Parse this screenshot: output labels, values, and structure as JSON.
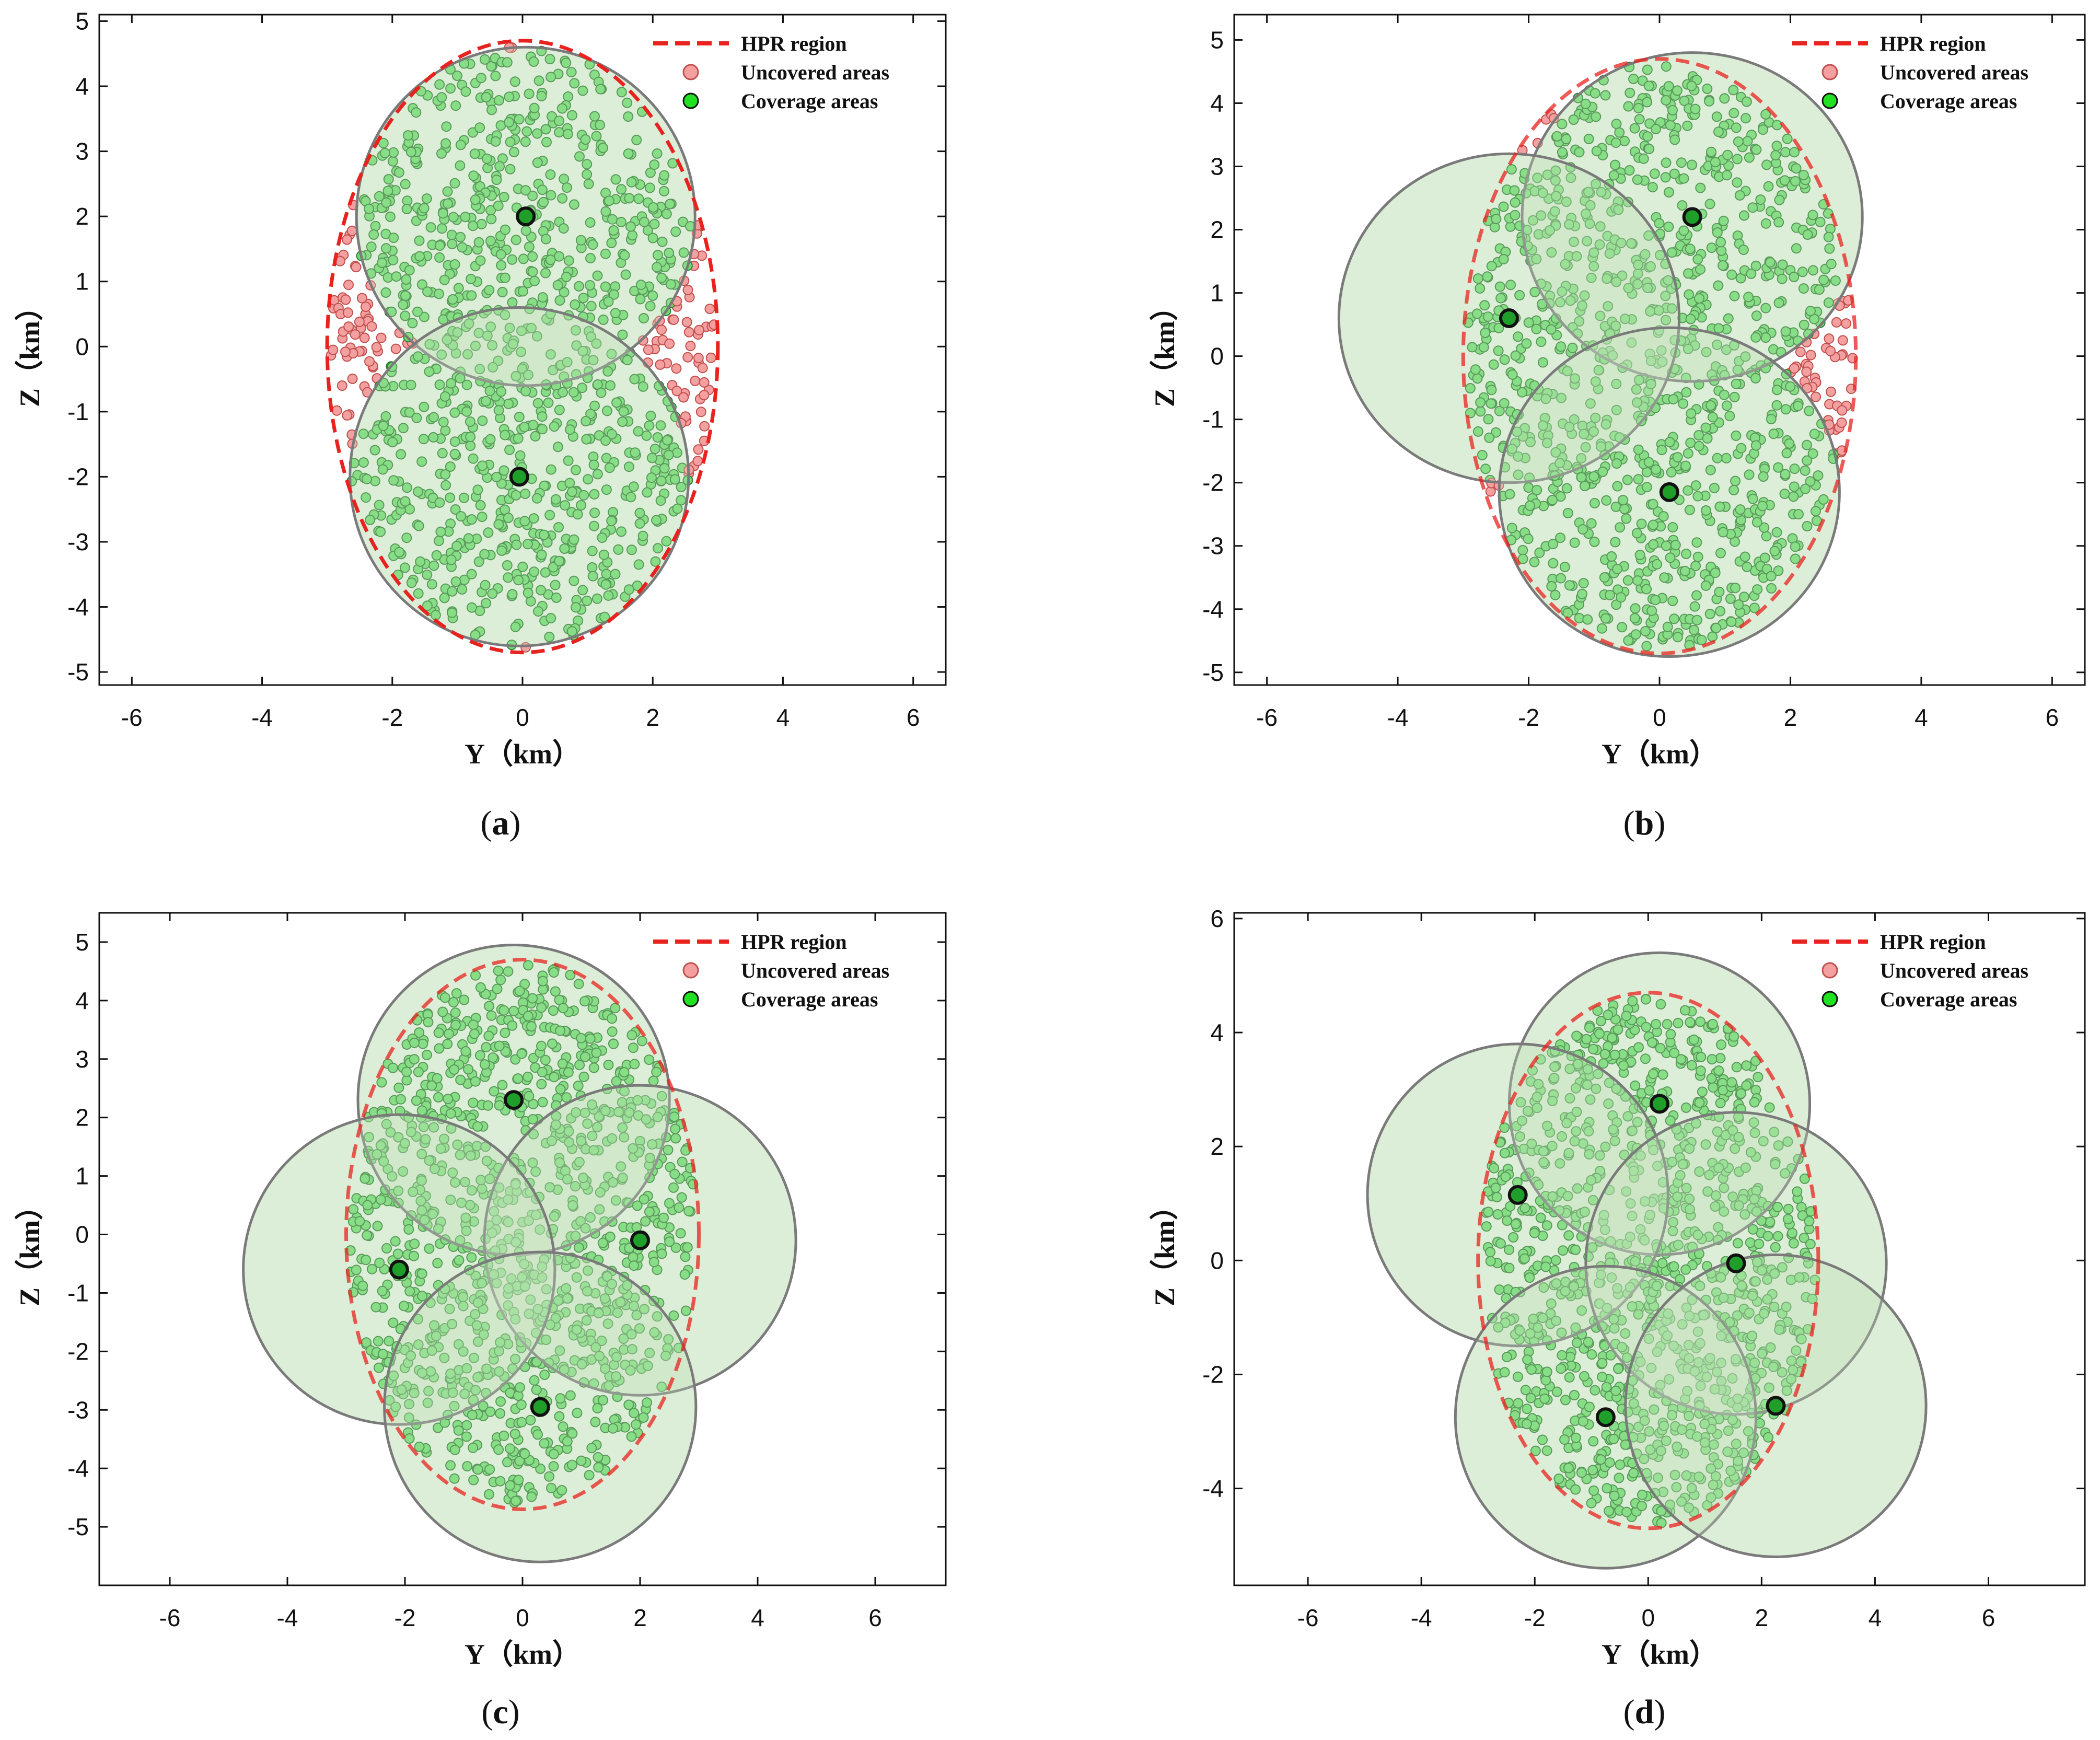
{
  "figure": {
    "panels": [
      {
        "id": "a",
        "caption_letter": "a",
        "caption_text": "(a)",
        "chart_data": {
          "type": "scatter",
          "title": "",
          "xlabel": "Y（km）",
          "ylabel": "Z（km）",
          "xlim": [
            -6.5,
            6.5
          ],
          "ylim": [
            -5.2,
            5.1
          ],
          "xticks": [
            -6,
            -4,
            -2,
            0,
            2,
            4,
            6
          ],
          "yticks": [
            -5,
            -4,
            -3,
            -2,
            -1,
            0,
            1,
            2,
            3,
            4,
            5
          ],
          "xtick_labels": [
            "-6",
            "-4",
            "-2",
            "0",
            "2",
            "4",
            "6"
          ],
          "ytick_labels": [
            "-5",
            "-4",
            "-3",
            "-2",
            "-1",
            "0",
            "1",
            "2",
            "3",
            "4",
            "5"
          ],
          "legend": {
            "placement": "top-right",
            "entries": [
              "HPR region",
              "Uncovered areas",
              "Coverage areas"
            ]
          },
          "hpr_region": {
            "center": [
              0,
              0
            ],
            "semi_axis_y": 3.0,
            "semi_axis_z": 4.7
          },
          "coverage_radius_km": 2.6,
          "uavs": [
            {
              "y": 0.05,
              "z": 2.0
            },
            {
              "y": -0.05,
              "z": -2.0
            }
          ],
          "point_count": 1150,
          "point_seed": 11
        }
      },
      {
        "id": "b",
        "caption_letter": "b",
        "caption_text": "(b)",
        "chart_data": {
          "type": "scatter",
          "title": "",
          "xlabel": "Y（km）",
          "ylabel": "Z（km）",
          "xlim": [
            -6.5,
            6.5
          ],
          "ylim": [
            -5.2,
            5.4
          ],
          "xticks": [
            -6,
            -4,
            -2,
            0,
            2,
            4,
            6
          ],
          "yticks": [
            -5,
            -4,
            -3,
            -2,
            -1,
            0,
            1,
            2,
            3,
            4,
            5
          ],
          "xtick_labels": [
            "-6",
            "-4",
            "-2",
            "0",
            "2",
            "4",
            "6"
          ],
          "ytick_labels": [
            "-5",
            "-4",
            "-3",
            "-2",
            "-1",
            "0",
            "1",
            "2",
            "3",
            "4",
            "5"
          ],
          "legend": {
            "placement": "top-right",
            "entries": [
              "HPR region",
              "Uncovered areas",
              "Coverage areas"
            ]
          },
          "hpr_region": {
            "center": [
              0,
              0
            ],
            "semi_axis_y": 3.0,
            "semi_axis_z": 4.7
          },
          "coverage_radius_km": 2.6,
          "uavs": [
            {
              "y": 0.5,
              "z": 2.2
            },
            {
              "y": -2.3,
              "z": 0.6
            },
            {
              "y": 0.15,
              "z": -2.15
            }
          ],
          "point_count": 1150,
          "point_seed": 23
        }
      },
      {
        "id": "c",
        "caption_letter": "c",
        "caption_text": "(c)",
        "chart_data": {
          "type": "scatter",
          "title": "",
          "xlabel": "Y（km）",
          "ylabel": "Z（km）",
          "xlim": [
            -7.2,
            7.2
          ],
          "ylim": [
            -6.0,
            5.5
          ],
          "xticks": [
            -6,
            -4,
            -2,
            0,
            2,
            4,
            6
          ],
          "yticks": [
            -5,
            -4,
            -3,
            -2,
            -1,
            0,
            1,
            2,
            3,
            4,
            5
          ],
          "xtick_labels": [
            "-6",
            "-4",
            "-2",
            "0",
            "2",
            "4",
            "6"
          ],
          "ytick_labels": [
            "-5",
            "-4",
            "-3",
            "-2",
            "-1",
            "0",
            "1",
            "2",
            "3",
            "4",
            "5"
          ],
          "legend": {
            "placement": "top-right",
            "entries": [
              "HPR region",
              "Uncovered areas",
              "Coverage areas"
            ]
          },
          "hpr_region": {
            "center": [
              0,
              0
            ],
            "semi_axis_y": 3.0,
            "semi_axis_z": 4.7
          },
          "coverage_radius_km": 2.65,
          "uavs": [
            {
              "y": -0.15,
              "z": 2.3
            },
            {
              "y": 2.0,
              "z": -0.1
            },
            {
              "y": -2.1,
              "z": -0.6
            },
            {
              "y": 0.3,
              "z": -2.95
            }
          ],
          "point_count": 1150,
          "point_seed": 37
        }
      },
      {
        "id": "d",
        "caption_letter": "d",
        "caption_text": "(d)",
        "chart_data": {
          "type": "scatter",
          "title": "",
          "xlabel": "Y（km）",
          "ylabel": "Z（km）",
          "xlim": [
            -7.3,
            7.7
          ],
          "ylim": [
            -5.7,
            6.1
          ],
          "xticks": [
            -6,
            -4,
            -2,
            0,
            2,
            4,
            6
          ],
          "yticks": [
            -4,
            -2,
            0,
            2,
            4,
            6
          ],
          "xtick_labels": [
            "-6",
            "-4",
            "-2",
            "0",
            "2",
            "4",
            "6"
          ],
          "ytick_labels": [
            "-4",
            "-2",
            "0",
            "2",
            "4",
            "6"
          ],
          "legend": {
            "placement": "top-right",
            "entries": [
              "HPR region",
              "Uncovered areas",
              "Coverage areas"
            ]
          },
          "hpr_region": {
            "center": [
              0,
              0
            ],
            "semi_axis_y": 3.0,
            "semi_axis_z": 4.7
          },
          "coverage_radius_km": 2.65,
          "uavs": [
            {
              "y": 0.2,
              "z": 2.75
            },
            {
              "y": -2.3,
              "z": 1.15
            },
            {
              "y": 1.55,
              "z": -0.05
            },
            {
              "y": -0.75,
              "z": -2.75
            },
            {
              "y": 2.25,
              "z": -2.55
            }
          ],
          "point_count": 1150,
          "point_seed": 51
        }
      }
    ]
  },
  "colors": {
    "hpr_line": "#e8231f",
    "uncovered_fill": "#f4a0a0",
    "uncovered_edge": "#c0504d",
    "covered_fill": "#6edc6e",
    "covered_edge": "#2e7d32",
    "circle_fill": "#cde5c5",
    "circle_edge": "#7a7a7a",
    "uav_fill": "#1f9e2a",
    "uav_edge": "#111111",
    "legend_green": "#22e022"
  }
}
